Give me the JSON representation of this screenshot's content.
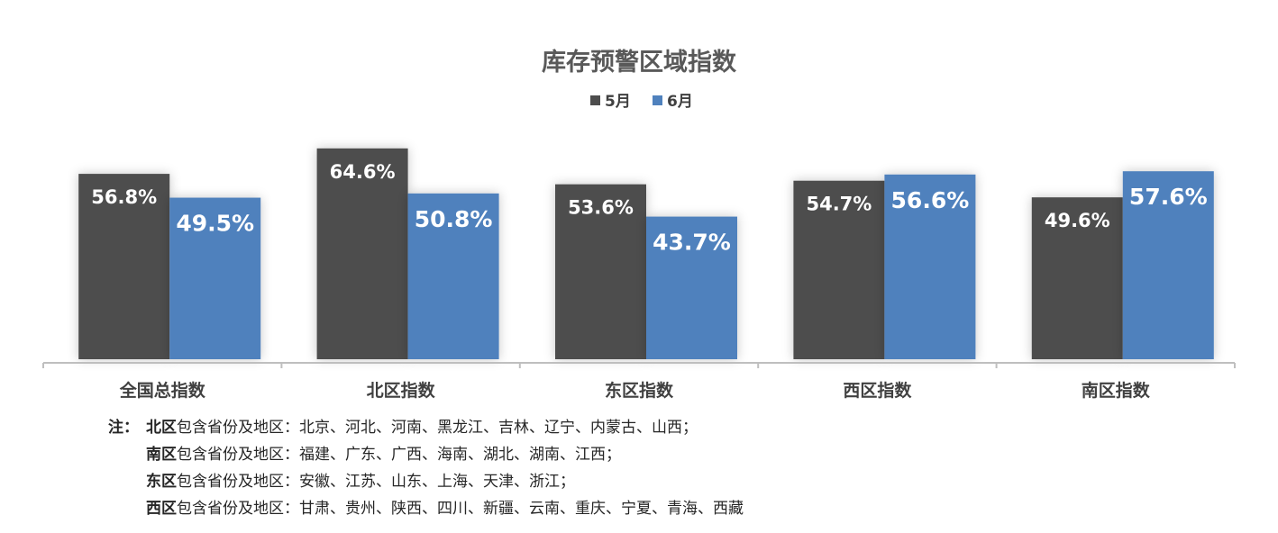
{
  "chart_data": {
    "type": "bar",
    "title": "库存预警区域指数",
    "categories": [
      "全国总指数",
      "北区指数",
      "东区指数",
      "西区指数",
      "南区指数"
    ],
    "series": [
      {
        "name": "5月",
        "color": "#4d4d4d",
        "values": [
          56.8,
          64.6,
          53.6,
          54.7,
          49.6
        ],
        "labels": [
          "56.8%",
          "64.6%",
          "53.6%",
          "54.7%",
          "49.6%"
        ]
      },
      {
        "name": "6月",
        "color": "#4f81bd",
        "values": [
          49.5,
          50.8,
          43.7,
          56.6,
          57.6
        ],
        "labels": [
          "49.5%",
          "50.8%",
          "43.7%",
          "56.6%",
          "57.6%"
        ]
      }
    ],
    "ylim": [
      0,
      80
    ],
    "legend": "top",
    "grid": false
  },
  "notes": {
    "prefix": "注：",
    "lines": [
      {
        "region": "北区",
        "text": "包含省份及地区：北京、河北、河南、黑龙江、吉林、辽宁、内蒙古、山西；"
      },
      {
        "region": "南区",
        "text": "包含省份及地区：福建、广东、广西、海南、湖北、湖南、江西；"
      },
      {
        "region": "东区",
        "text": "包含省份及地区：安徽、江苏、山东、上海、天津、浙江；"
      },
      {
        "region": "西区",
        "text": "包含省份及地区：甘肃、贵州、陕西、四川、新疆、云南、重庆、宁夏、青海、西藏"
      }
    ]
  }
}
